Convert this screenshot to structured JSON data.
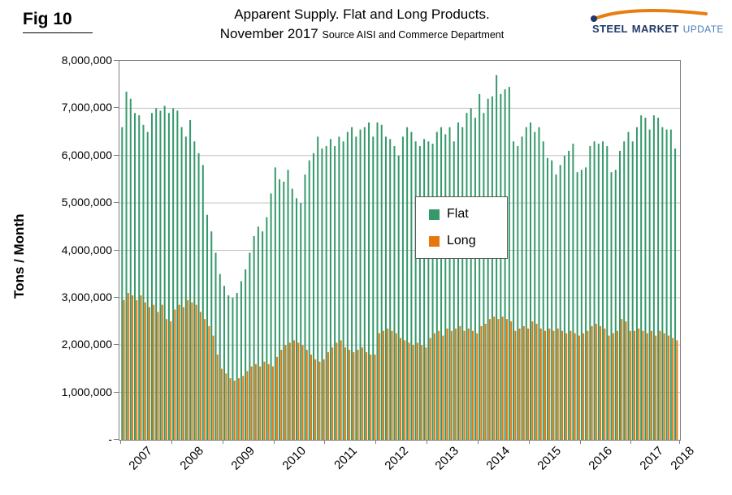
{
  "figure": {
    "label": "Fig 10"
  },
  "title": {
    "line1": "Apparent Supply. Flat and Long Products.",
    "line2_main": "November 2017",
    "line2_source": "Source AISI and Commerce Department"
  },
  "logo": {
    "steel": "STEEL",
    "market": "MARKET",
    "update": "UPDATE",
    "swoosh_color": "#E87E10",
    "text_color": "#1F3A68"
  },
  "chart_data": {
    "type": "bar",
    "title": "Apparent Supply. Flat and Long Products. November 2017",
    "xlabel": "",
    "ylabel": "Tons / Month",
    "ylim": [
      0,
      8000000
    ],
    "grid_step": 1000000,
    "grid": true,
    "legend_position": "center",
    "y_tick_labels": [
      "8,000,000",
      "7,000,000",
      "6,000,000",
      "5,000,000",
      "4,000,000",
      "3,000,000",
      "2,000,000",
      "1,000,000",
      "-"
    ],
    "x_year_labels": [
      "2007",
      "2008",
      "2009",
      "2010",
      "2011",
      "2012",
      "2013",
      "2014",
      "2015",
      "2016",
      "2017",
      "2018"
    ],
    "months_start": "2007-01",
    "months_end": "2017-11",
    "series": [
      {
        "name": "Flat",
        "color": "#35996B",
        "values": [
          6600000,
          7350000,
          7200000,
          6900000,
          6850000,
          6650000,
          6500000,
          6900000,
          7000000,
          6950000,
          7050000,
          6900000,
          7000000,
          6950000,
          6600000,
          6400000,
          6750000,
          6300000,
          6050000,
          5800000,
          4750000,
          4400000,
          3950000,
          3500000,
          3250000,
          3050000,
          3000000,
          3100000,
          3350000,
          3600000,
          3950000,
          4300000,
          4500000,
          4400000,
          4700000,
          5200000,
          5750000,
          5500000,
          5450000,
          5700000,
          5300000,
          5100000,
          5000000,
          5600000,
          5900000,
          6050000,
          6400000,
          6150000,
          6200000,
          6350000,
          6200000,
          6400000,
          6300000,
          6500000,
          6600000,
          6400000,
          6550000,
          6600000,
          6700000,
          6400000,
          6700000,
          6650000,
          6400000,
          6350000,
          6200000,
          6000000,
          6400000,
          6600000,
          6500000,
          6300000,
          6200000,
          6350000,
          6300000,
          6250000,
          6500000,
          6600000,
          6450000,
          6600000,
          6300000,
          6700000,
          6600000,
          6900000,
          7000000,
          6800000,
          7300000,
          6900000,
          7200000,
          7250000,
          7700000,
          7300000,
          7400000,
          7450000,
          6300000,
          6200000,
          6400000,
          6600000,
          6700000,
          6500000,
          6600000,
          6300000,
          5950000,
          5900000,
          5600000,
          5800000,
          6000000,
          6100000,
          6250000,
          5650000,
          5700000,
          5750000,
          6200000,
          6300000,
          6250000,
          6300000,
          6200000,
          5650000,
          5700000,
          6100000,
          6300000,
          6500000,
          6300000,
          6600000,
          6850000,
          6800000,
          6550000,
          6850000,
          6800000,
          6600000,
          6550000,
          6550000,
          6150000
        ]
      },
      {
        "name": "Long",
        "color": "#E8760C",
        "values": [
          2950000,
          3100000,
          3050000,
          2950000,
          3050000,
          2900000,
          2800000,
          2850000,
          2700000,
          2850000,
          2550000,
          2500000,
          2750000,
          2850000,
          2800000,
          2950000,
          2900000,
          2850000,
          2700000,
          2550000,
          2400000,
          2200000,
          1800000,
          1500000,
          1400000,
          1300000,
          1250000,
          1300000,
          1350000,
          1450000,
          1550000,
          1600000,
          1550000,
          1650000,
          1600000,
          1550000,
          1750000,
          1900000,
          2000000,
          2050000,
          2100000,
          2050000,
          2000000,
          1900000,
          1800000,
          1700000,
          1650000,
          1700000,
          1850000,
          1950000,
          2050000,
          2100000,
          1950000,
          1900000,
          1850000,
          1900000,
          1950000,
          1850000,
          1800000,
          1800000,
          2250000,
          2300000,
          2350000,
          2300000,
          2250000,
          2150000,
          2100000,
          2050000,
          2000000,
          2050000,
          2000000,
          1950000,
          2150000,
          2250000,
          2300000,
          2200000,
          2350000,
          2300000,
          2350000,
          2400000,
          2300000,
          2350000,
          2300000,
          2250000,
          2400000,
          2450000,
          2550000,
          2600000,
          2550000,
          2600000,
          2550000,
          2500000,
          2300000,
          2350000,
          2400000,
          2350000,
          2500000,
          2450000,
          2350000,
          2300000,
          2350000,
          2300000,
          2350000,
          2300000,
          2250000,
          2300000,
          2250000,
          2200000,
          2250000,
          2300000,
          2400000,
          2450000,
          2400000,
          2350000,
          2200000,
          2250000,
          2300000,
          2550000,
          2500000,
          2300000,
          2300000,
          2350000,
          2300000,
          2250000,
          2300000,
          2200000,
          2300000,
          2250000,
          2200000,
          2150000,
          2100000
        ]
      }
    ]
  }
}
